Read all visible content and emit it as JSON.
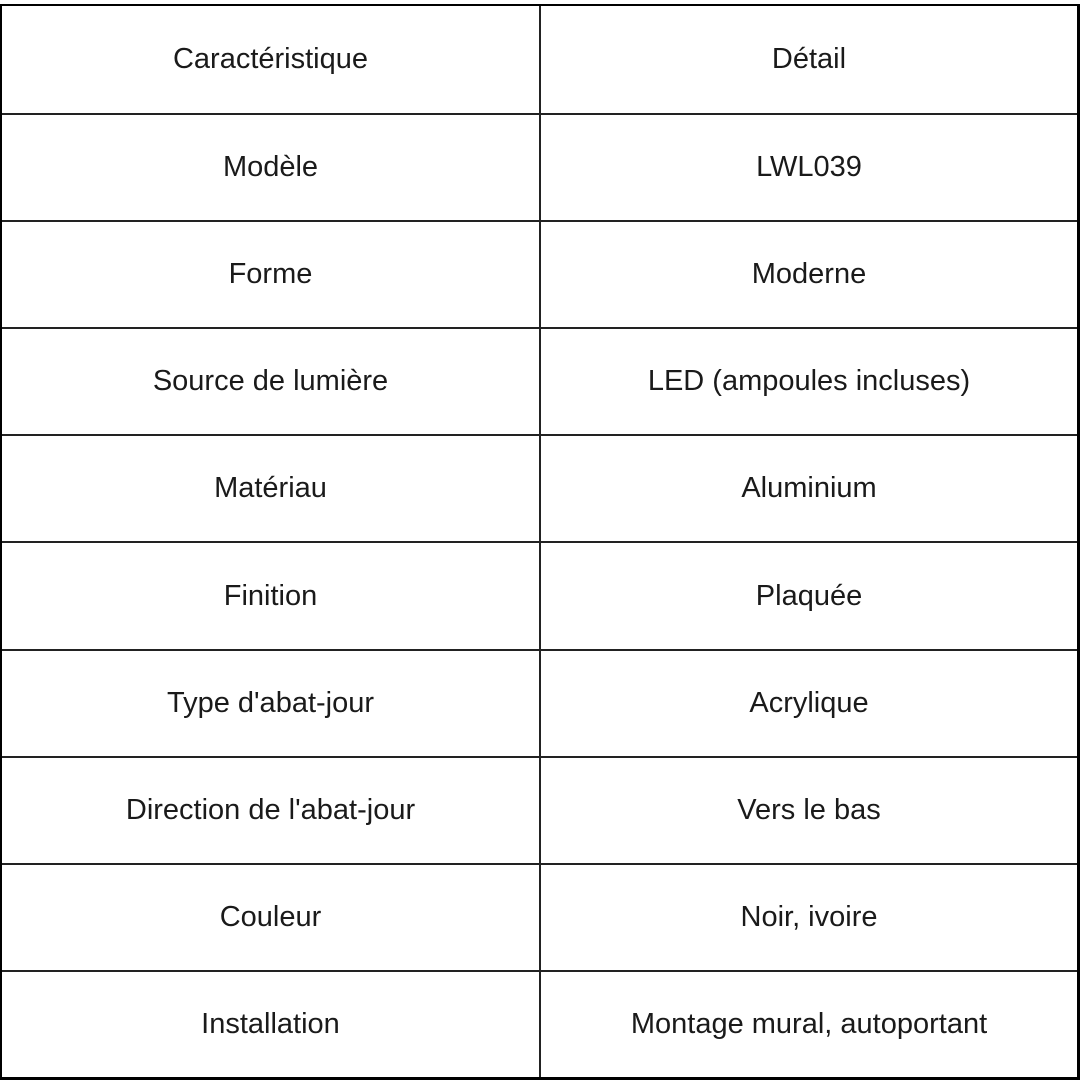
{
  "table": {
    "headers": [
      "Caractéristique",
      "Détail"
    ],
    "rows": [
      [
        "Modèle",
        "LWL039"
      ],
      [
        "Forme",
        "Moderne"
      ],
      [
        "Source de lumière",
        "LED (ampoules incluses)"
      ],
      [
        "Matériau",
        "Aluminium"
      ],
      [
        "Finition",
        "Plaquée"
      ],
      [
        "Type d'abat-jour",
        "Acrylique"
      ],
      [
        "Direction de l'abat-jour",
        "Vers le bas"
      ],
      [
        "Couleur",
        "Noir, ivoire"
      ],
      [
        "Installation",
        "Montage mural, autoportant"
      ]
    ]
  }
}
